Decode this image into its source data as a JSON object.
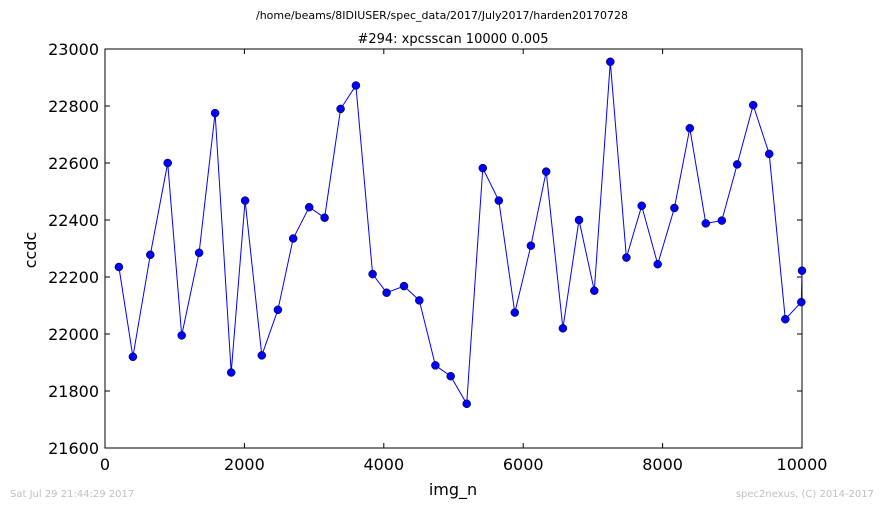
{
  "figure": {
    "suptitle": "/home/beams/8IDIUSER/spec_data/2017/July2017/harden20170728",
    "footer_left": "Sat Jul 29 21:44:29 2017",
    "footer_right": "spec2nexus, (C) 2014-2017"
  },
  "chart_data": {
    "type": "line",
    "title": "#294: xpcsscan 10000 0.005",
    "xlabel": "img_n",
    "ylabel": "ccdc",
    "xlim": [
      0,
      10000
    ],
    "ylim": [
      21600,
      23000
    ],
    "xticks": [
      0,
      2000,
      4000,
      6000,
      8000,
      10000
    ],
    "yticks": [
      21600,
      21800,
      22000,
      22200,
      22400,
      22600,
      22800,
      23000
    ],
    "grid": false,
    "line_color": "#0000ff",
    "marker_color": "#0000ff",
    "series": [
      {
        "x": [
          200,
          400,
          650,
          900,
          1100,
          1350,
          1580,
          1810,
          2010,
          2250,
          2480,
          2700,
          2930,
          3150,
          3380,
          3600,
          3840,
          4040,
          4290,
          4510,
          4740,
          4960,
          5190,
          5420,
          5650,
          5880,
          6110,
          6330,
          6570,
          6800,
          7020,
          7250,
          7480,
          7700,
          7930,
          8170,
          8390,
          8620,
          8850,
          9070,
          9300,
          9530,
          9760,
          9990,
          10000
        ],
        "y": [
          22235,
          21920,
          22278,
          22600,
          21995,
          22285,
          22775,
          21865,
          22468,
          21925,
          22085,
          22335,
          22445,
          22408,
          22790,
          22872,
          22210,
          22145,
          22168,
          22118,
          21890,
          21852,
          21755,
          22582,
          22468,
          22075,
          22310,
          22570,
          22020,
          22400,
          22152,
          22955,
          22268,
          22450,
          22245,
          22442,
          22722,
          22388,
          22398,
          22595,
          22803,
          22632,
          22052,
          22112,
          22222
        ]
      }
    ]
  }
}
